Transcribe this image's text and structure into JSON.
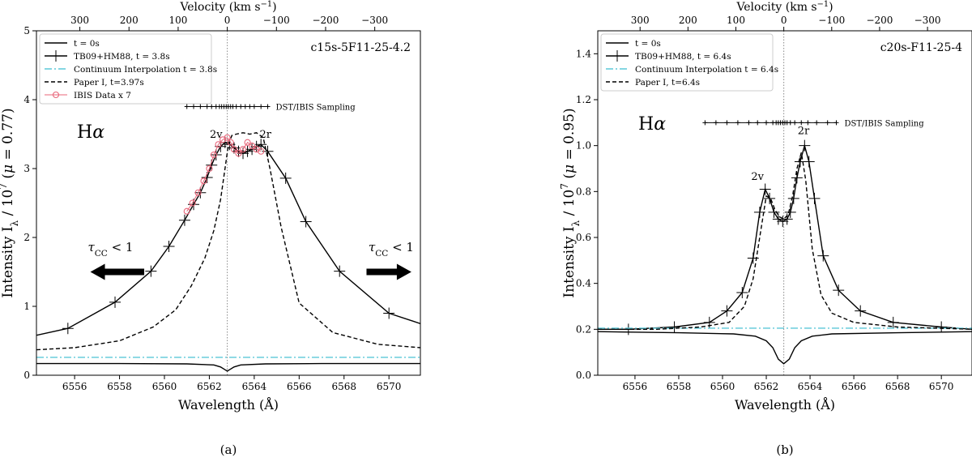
{
  "figure_labels": [
    "(a)",
    "(b)"
  ],
  "chart_data": [
    {
      "type": "line",
      "panel_label": "(a)",
      "model_label": "c15s-5F11-25-4.2",
      "line_label": "Hα",
      "xlabel": "Wavelength (Å)",
      "ylabel": "Intensity I_λ / 10^7 (μ = 0.77)",
      "top_xlabel": "Velocity (km s⁻¹)",
      "xlim": [
        6554.3,
        6571.4
      ],
      "ylim": [
        0,
        5
      ],
      "x_ticks": [
        6556,
        6558,
        6560,
        6562,
        6564,
        6566,
        6568,
        6570
      ],
      "y_ticks": [
        0,
        1,
        2,
        3,
        4,
        5
      ],
      "y_tick_labels": [
        "0",
        "1",
        "2",
        "3",
        "4",
        "5"
      ],
      "top_ticks": [
        300,
        200,
        100,
        0,
        -100,
        -200,
        -300
      ],
      "rest_wavelength": 6562.8,
      "grid": false,
      "legend_position": "top-left",
      "legend": [
        "t = 0s",
        "TB09+HM88, t = 3.8s",
        "Continuum Interpolation t = 3.8s",
        "Paper I, t=3.97s",
        "IBIS Data x 7"
      ],
      "series": [
        {
          "name": "t = 0s",
          "style": "solid",
          "color": "#000000",
          "x": [
            6554.3,
            6558,
            6561,
            6562.2,
            6562.5,
            6562.7,
            6562.8,
            6562.9,
            6563.1,
            6563.4,
            6564.5,
            6567,
            6571.4
          ],
          "y": [
            0.17,
            0.17,
            0.165,
            0.15,
            0.12,
            0.08,
            0.06,
            0.08,
            0.12,
            0.15,
            0.165,
            0.17,
            0.17
          ]
        },
        {
          "name": "TB09+HM88, t = 3.8s",
          "style": "solid-plus",
          "color": "#000000",
          "x": [
            6554.3,
            6555.7,
            6557.8,
            6559.4,
            6560.2,
            6560.9,
            6561.3,
            6561.6,
            6561.9,
            6562.1,
            6562.3,
            6562.5,
            6562.7,
            6562.9,
            6563.1,
            6563.3,
            6563.5,
            6563.7,
            6563.9,
            6564.1,
            6564.3,
            6564.6,
            6565.4,
            6566.3,
            6567.8,
            6570.0,
            6571.4
          ],
          "y": [
            0.58,
            0.68,
            1.06,
            1.51,
            1.87,
            2.25,
            2.48,
            2.65,
            2.87,
            3.05,
            3.2,
            3.32,
            3.38,
            3.35,
            3.3,
            3.25,
            3.22,
            3.25,
            3.28,
            3.32,
            3.35,
            3.25,
            2.86,
            2.23,
            1.51,
            0.9,
            0.75
          ]
        },
        {
          "name": "Continuum Interpolation t = 3.8s",
          "style": "dashdot",
          "color": "#5bc8d8",
          "x": [
            6554.3,
            6571.4
          ],
          "y": [
            0.26,
            0.26
          ]
        },
        {
          "name": "Paper I, t=3.97s",
          "style": "dashed",
          "color": "#000000",
          "x": [
            6554.3,
            6556,
            6558,
            6559.5,
            6560.5,
            6561.2,
            6561.8,
            6562.2,
            6562.5,
            6562.7,
            6562.85,
            6563.0,
            6563.2,
            6563.5,
            6563.8,
            6564.1,
            6564.4,
            6564.7,
            6565.2,
            6566.0,
            6567.5,
            6569.5,
            6571.4
          ],
          "y": [
            0.37,
            0.4,
            0.5,
            0.7,
            0.95,
            1.3,
            1.7,
            2.1,
            2.55,
            3.0,
            3.35,
            3.48,
            3.5,
            3.52,
            3.5,
            3.52,
            3.45,
            3.0,
            2.15,
            1.05,
            0.62,
            0.45,
            0.4
          ]
        },
        {
          "name": "IBIS Data x 7",
          "style": "marker-circle",
          "color": "#e8667a",
          "x": [
            6561.0,
            6561.25,
            6561.5,
            6561.75,
            6562.0,
            6562.2,
            6562.4,
            6562.6,
            6562.8,
            6562.95,
            6563.1,
            6563.3,
            6563.5,
            6563.7,
            6563.9,
            6564.1,
            6564.3
          ],
          "y": [
            2.38,
            2.5,
            2.65,
            2.82,
            3.0,
            3.2,
            3.35,
            3.42,
            3.45,
            3.38,
            3.28,
            3.22,
            3.28,
            3.38,
            3.33,
            3.28,
            3.25
          ]
        }
      ],
      "sampling": {
        "label": "DST/IBIS Sampling",
        "y": 3.9,
        "x": [
          6561.0,
          6561.3,
          6561.6,
          6561.9,
          6562.1,
          6562.3,
          6562.45,
          6562.55,
          6562.65,
          6562.75,
          6562.85,
          6562.95,
          6563.05,
          6563.2,
          6563.4,
          6563.6,
          6563.8,
          6564.0,
          6564.3,
          6564.6
        ]
      },
      "annotations": [
        {
          "text": "2v",
          "x": 6562.3,
          "y": 3.45
        },
        {
          "text": "2r",
          "x": 6564.5,
          "y": 3.45
        },
        {
          "text": "τ_CC < 1",
          "x": 6557.6,
          "y": 1.8
        },
        {
          "text": "τ_CC < 1",
          "x": 6570.1,
          "y": 1.8
        }
      ],
      "arrows": [
        {
          "direction": "left",
          "x_from": 6559.1,
          "x_to": 6556.7,
          "y": 1.5
        },
        {
          "direction": "right",
          "x_from": 6569.0,
          "x_to": 6571.0,
          "y": 1.5
        }
      ]
    },
    {
      "type": "line",
      "panel_label": "(b)",
      "model_label": "c20s-F11-25-4",
      "line_label": "Hα",
      "xlabel": "Wavelength (Å)",
      "ylabel": "Intensity I_λ / 10^7 (μ = 0.95)",
      "top_xlabel": "Velocity (km s⁻¹)",
      "xlim": [
        6554.3,
        6571.4
      ],
      "ylim": [
        0,
        1.5
      ],
      "x_ticks": [
        6556,
        6558,
        6560,
        6562,
        6564,
        6566,
        6568,
        6570
      ],
      "y_ticks": [
        0,
        0.2,
        0.4,
        0.6,
        0.8,
        1.0,
        1.2,
        1.4
      ],
      "y_tick_labels": [
        "0.0",
        "0.2",
        "0.4",
        "0.6",
        "0.8",
        "1.0",
        "1.2",
        "1.4"
      ],
      "top_ticks": [
        300,
        200,
        100,
        0,
        -100,
        -200,
        -300
      ],
      "rest_wavelength": 6562.8,
      "grid": false,
      "legend_position": "top-left",
      "legend": [
        "t = 0s",
        "TB09+HM88, t = 6.4s",
        "Continuum Interpolation t = 6.4s",
        "Paper I, t=6.4s"
      ],
      "series": [
        {
          "name": "t = 0s",
          "style": "solid",
          "color": "#000000",
          "x": [
            6554.3,
            6558,
            6560.5,
            6561.5,
            6562.0,
            6562.3,
            6562.55,
            6562.8,
            6563.05,
            6563.3,
            6563.6,
            6564.1,
            6565,
            6568,
            6571.4
          ],
          "y": [
            0.19,
            0.185,
            0.18,
            0.17,
            0.15,
            0.12,
            0.07,
            0.05,
            0.07,
            0.12,
            0.15,
            0.17,
            0.18,
            0.185,
            0.19
          ]
        },
        {
          "name": "TB09+HM88, t = 6.4s",
          "style": "solid-plus",
          "color": "#000000",
          "x": [
            6554.3,
            6555.7,
            6557.8,
            6559.4,
            6560.2,
            6560.9,
            6561.4,
            6561.7,
            6561.95,
            6562.15,
            6562.35,
            6562.55,
            6562.75,
            6562.95,
            6563.1,
            6563.25,
            6563.4,
            6563.55,
            6563.75,
            6563.95,
            6564.2,
            6564.6,
            6565.3,
            6566.3,
            6567.8,
            6570.0,
            6571.4
          ],
          "y": [
            0.2,
            0.2,
            0.21,
            0.23,
            0.28,
            0.36,
            0.51,
            0.71,
            0.81,
            0.77,
            0.71,
            0.68,
            0.67,
            0.68,
            0.71,
            0.77,
            0.86,
            0.93,
            1.0,
            0.93,
            0.77,
            0.52,
            0.37,
            0.28,
            0.23,
            0.21,
            0.2
          ]
        },
        {
          "name": "Continuum Interpolation t = 6.4s",
          "style": "dashdot",
          "color": "#5bc8d8",
          "x": [
            6554.3,
            6571.4
          ],
          "y": [
            0.205,
            0.205
          ]
        },
        {
          "name": "Paper I, t=6.4s",
          "style": "dashed",
          "color": "#000000",
          "x": [
            6554.3,
            6557,
            6559,
            6560.3,
            6561.0,
            6561.4,
            6561.7,
            6562.0,
            6562.2,
            6562.4,
            6562.6,
            6562.8,
            6563.0,
            6563.2,
            6563.4,
            6563.6,
            6563.8,
            6564.1,
            6564.5,
            6565.0,
            6566,
            6568,
            6571.4
          ],
          "y": [
            0.2,
            0.2,
            0.21,
            0.23,
            0.3,
            0.42,
            0.6,
            0.78,
            0.77,
            0.72,
            0.69,
            0.68,
            0.7,
            0.78,
            0.9,
            0.97,
            0.85,
            0.55,
            0.35,
            0.27,
            0.23,
            0.21,
            0.2
          ]
        }
      ],
      "sampling": {
        "label": "DST/IBIS Sampling",
        "y": 1.1,
        "x": [
          6559.2,
          6559.7,
          6560.2,
          6560.7,
          6561.2,
          6561.6,
          6562.0,
          6562.3,
          6562.45,
          6562.55,
          6562.65,
          6562.75,
          6562.85,
          6562.95,
          6563.1,
          6563.3,
          6563.6,
          6563.9,
          6564.3,
          6564.8,
          6565.2
        ]
      },
      "annotations": [
        {
          "text": "2v",
          "x": 6561.6,
          "y": 0.85
        },
        {
          "text": "2r",
          "x": 6563.7,
          "y": 1.05
        }
      ],
      "arrows": []
    }
  ]
}
